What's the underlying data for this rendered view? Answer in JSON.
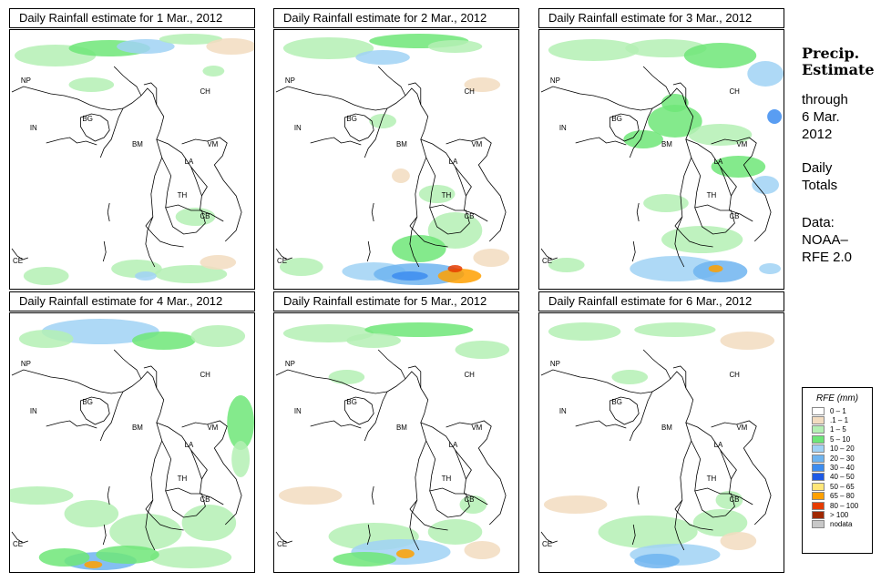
{
  "panels": [
    {
      "title": "Daily Rainfall estimate for  1 Mar., 2012",
      "date": "1 Mar., 2012"
    },
    {
      "title": "Daily Rainfall estimate for  2 Mar., 2012",
      "date": "2 Mar., 2012"
    },
    {
      "title": "Daily Rainfall estimate for  3 Mar., 2012",
      "date": "3 Mar., 2012"
    },
    {
      "title": "Daily Rainfall estimate for  4 Mar., 2012",
      "date": "4 Mar., 2012"
    },
    {
      "title": "Daily Rainfall estimate for  5 Mar., 2012",
      "date": "5 Mar., 2012"
    },
    {
      "title": "Daily Rainfall estimate for  6 Mar., 2012",
      "date": "6 Mar., 2012"
    }
  ],
  "country_labels": {
    "np": "NP",
    "ch": "CH",
    "in": "IN",
    "bg": "BG",
    "bm": "BM",
    "vm": "VM",
    "la": "LA",
    "th": "TH",
    "cb": "CB",
    "ce": "CE"
  },
  "sidebar": {
    "heading_line1": "Precip.",
    "heading_line2": "Estimate",
    "through": "through",
    "date_line1": "6 Mar.",
    "date_line2": "2012",
    "daily": "Daily",
    "totals": "Totals",
    "data_label": "Data:",
    "data_source1": "NOAA–",
    "data_source2": "RFE 2.0"
  },
  "legend": {
    "title": "RFE (mm)",
    "items": [
      {
        "label": "0 – 1",
        "color": "#ffffff"
      },
      {
        "label": ".1 – 1",
        "color": "#f2dcc0"
      },
      {
        "label": "1 – 5",
        "color": "#b4f0b4"
      },
      {
        "label": "5 – 10",
        "color": "#6ee678"
      },
      {
        "label": "10 – 20",
        "color": "#a0d2f5"
      },
      {
        "label": "20 – 30",
        "color": "#6eb4f0"
      },
      {
        "label": "30 – 40",
        "color": "#3c8cf0"
      },
      {
        "label": "40 – 50",
        "color": "#1e5ae6"
      },
      {
        "label": "50 – 65",
        "color": "#ffe678"
      },
      {
        "label": "65 – 80",
        "color": "#ffa000"
      },
      {
        "label": "80 – 100",
        "color": "#e63c00"
      },
      {
        "label": "> 100",
        "color": "#a02800"
      },
      {
        "label": "nodata",
        "color": "#c8c8c8"
      }
    ]
  }
}
